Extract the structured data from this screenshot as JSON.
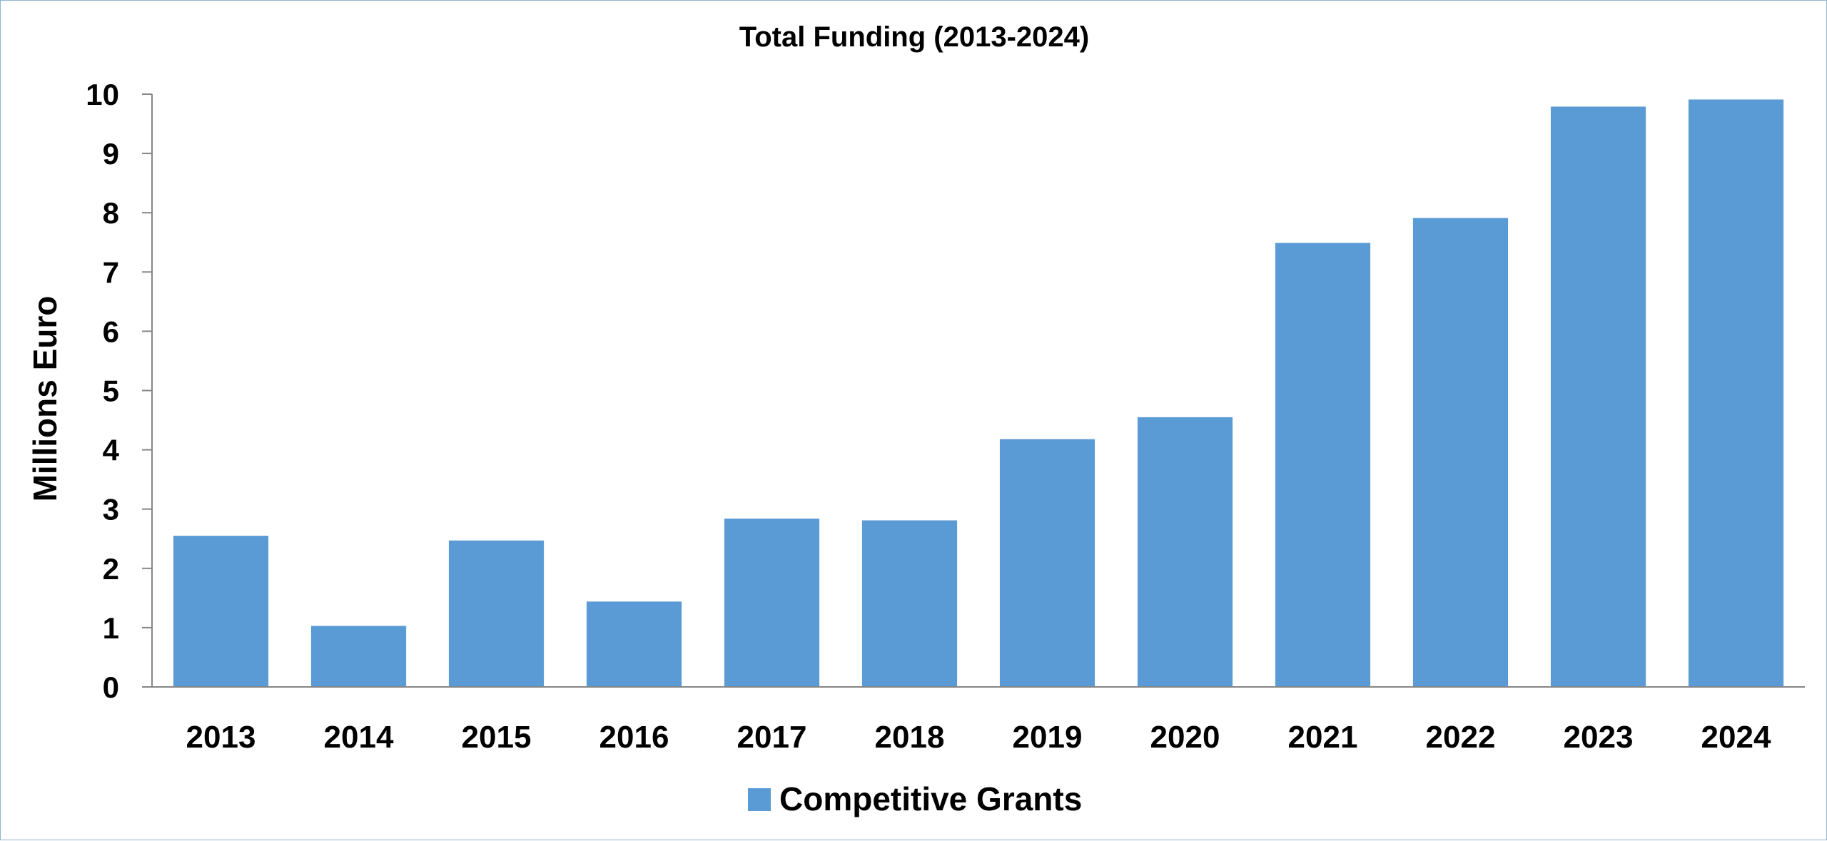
{
  "chart_data": {
    "type": "bar",
    "title": "Total Funding (2013-2024)",
    "xlabel": "",
    "ylabel": "Millions Euro",
    "ylim": [
      0,
      10
    ],
    "yticks": [
      "0",
      "1",
      "2",
      "3",
      "4",
      "5",
      "6",
      "7",
      "8",
      "9",
      "10"
    ],
    "categories": [
      "2013",
      "2014",
      "2015",
      "2016",
      "2017",
      "2018",
      "2019",
      "2020",
      "2021",
      "2022",
      "2023",
      "2024"
    ],
    "series": [
      {
        "name": "Competitive Grants",
        "color": "#5b9bd5",
        "values": [
          2.55,
          1.03,
          2.47,
          1.44,
          2.84,
          2.81,
          4.18,
          4.55,
          7.49,
          7.91,
          9.79,
          9.91
        ]
      }
    ],
    "grid": false,
    "legend_position": "bottom"
  }
}
